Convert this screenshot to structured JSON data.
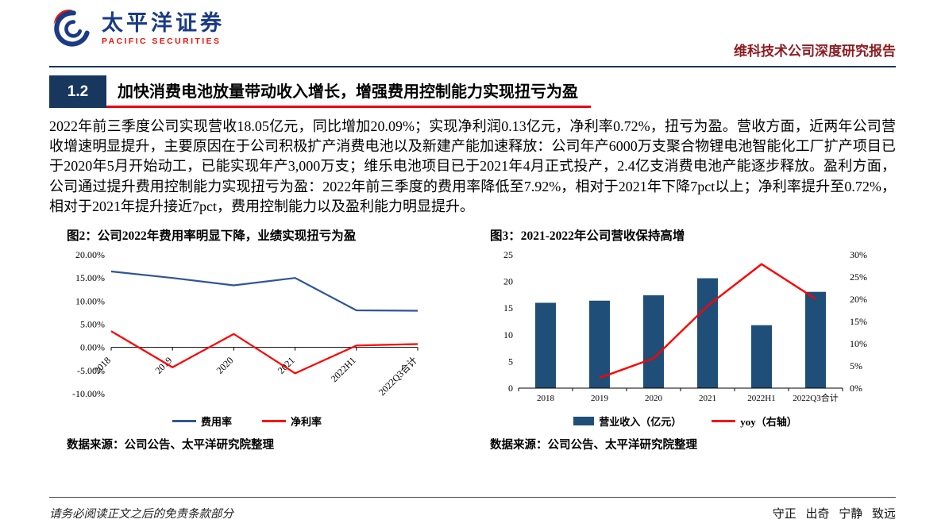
{
  "header": {
    "brand_cn": "太平洋证券",
    "brand_en": "PACIFIC SECURITIES",
    "report_title": "维科技术公司深度研究报告"
  },
  "section": {
    "number": "1.2",
    "title": "加快消费电池放量带动收入增长，增强费用控制能力实现扭亏为盈"
  },
  "body": {
    "paragraph": "2022年前三季度公司实现营收18.05亿元，同比增加20.09%；实现净利润0.13亿元，净利率0.72%，扭亏为盈。营收方面，近两年公司营收增速明显提升，主要原因在于公司积极扩产消费电池以及新建产能加速释放：公司年产6000万支聚合物锂电池智能化工厂扩产项目已于2020年5月开始动工，已能实现年产3,000万支；维乐电池项目已于2021年4月正式投产，2.4亿支消费电池产能逐步释放。盈利方面，公司通过提升费用控制能力实现扭亏为盈：2022年前三季度的费用率降低至7.92%，相对于2021年下降7pct以上；净利率提升至0.72%，相对于2021年提升接近7pct，费用控制能力以及盈利能力明显提升。"
  },
  "figures": {
    "fig2": {
      "title": "图2：公司2022年费用率明显下降，业绩实现扭亏为盈",
      "source": "数据来源：公司公告、太平洋研究院整理"
    },
    "fig3": {
      "title": "图3：2021-2022年公司营收保持高增",
      "source": "数据来源：公司公告、太平洋研究院整理"
    }
  },
  "chart_data": [
    {
      "id": "fig2",
      "type": "line",
      "title": "公司2022年费用率明显下降，业绩实现扭亏为盈",
      "categories": [
        "2018",
        "2019",
        "2020",
        "2021",
        "2022H1",
        "2022Q3合计"
      ],
      "series": [
        {
          "name": "费用率",
          "color": "#2F5597",
          "values": [
            16.4,
            15.0,
            13.4,
            15.0,
            8.0,
            7.92
          ]
        },
        {
          "name": "净利率",
          "color": "#FF0000",
          "values": [
            3.5,
            -4.3,
            2.9,
            -5.6,
            0.4,
            0.72
          ]
        }
      ],
      "ylim": [
        -10,
        20
      ],
      "ytick_step": 5,
      "ytick_format": "0.00%",
      "grid": false,
      "legend_position": "bottom"
    },
    {
      "id": "fig3",
      "type": "bar-line",
      "title": "2021-2022年公司营收保持高增",
      "categories": [
        "2018",
        "2019",
        "2020",
        "2021",
        "2022H1",
        "2022Q3合计"
      ],
      "bar_series": {
        "name": "营业收入（亿元）",
        "color": "#1F4E79",
        "axis": "left",
        "values": [
          16.0,
          16.4,
          17.4,
          20.6,
          11.8,
          18.05
        ]
      },
      "line_series": {
        "name": "yoy（右轴）",
        "color": "#FF0000",
        "axis": "right",
        "values": [
          null,
          2.3,
          6.7,
          18.5,
          27.9,
          20.09
        ]
      },
      "ylim_left": [
        0,
        25
      ],
      "ytick_step_left": 5,
      "ylim_right": [
        0,
        30
      ],
      "ytick_step_right": 5,
      "grid": false,
      "legend_position": "bottom"
    }
  ],
  "footer": {
    "disclaimer": "请务必阅读正文之后的免责条款部分",
    "motto": "守正 出奇 宁静 致远"
  },
  "colors": {
    "navy": "#17375E",
    "brand_blue": "#1B3B85",
    "brand_red": "#E8140C",
    "heading_red": "#E60012",
    "report_title_maroon": "#8E1D22"
  }
}
